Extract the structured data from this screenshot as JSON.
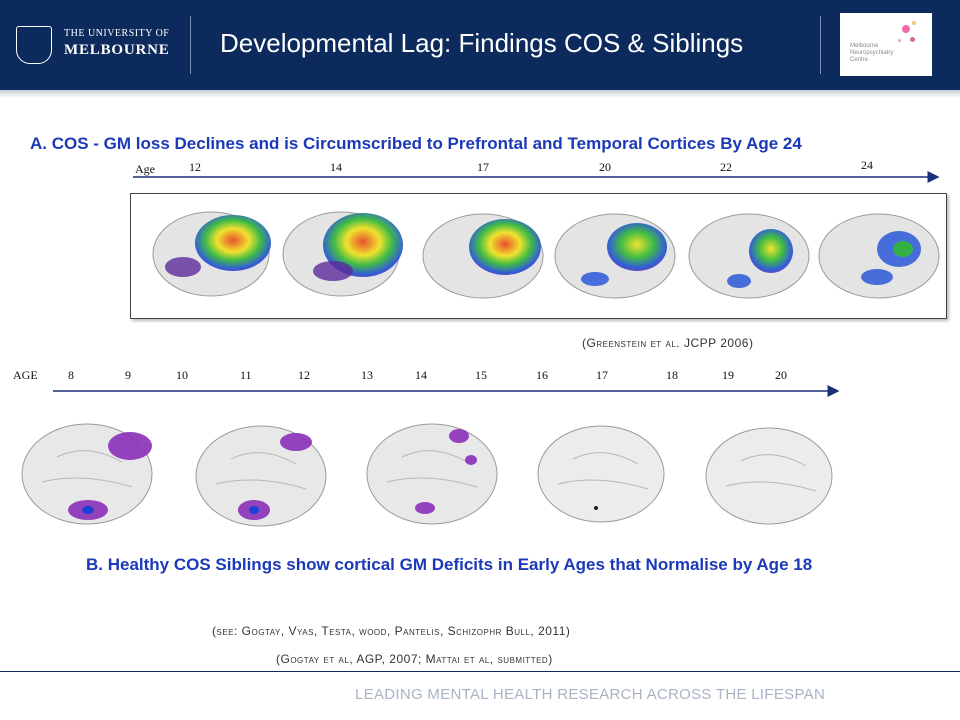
{
  "header": {
    "logo_line1": "THE UNIVERSITY OF",
    "logo_line2": "MELBOURNE",
    "title": "Developmental Lag: Findings COS & Siblings",
    "partner_logo_text": "Melbourne\nNeuropsychiatry\nCentre"
  },
  "sectionA": {
    "heading": "A. COS - GM loss Declines and is Circumscribed to Prefrontal and Temporal Cortices By Age 24",
    "axis_label": "Age",
    "ticks": [
      "12",
      "14",
      "17",
      "20",
      "22",
      "24"
    ],
    "citation": "(Greenstein et al. JCPP 2006)"
  },
  "sectionB": {
    "axis_label": "AGE",
    "ticks": [
      "8",
      "9",
      "10",
      "11",
      "12",
      "13",
      "14",
      "15",
      "16",
      "17",
      "18",
      "19",
      "20"
    ],
    "heading": "B. Healthy COS Siblings show cortical GM Deficits in Early Ages that Normalise by Age 18",
    "citation1": "(see: Gogtay, Vyas, Testa, wood, Pantelis, Schizophr Bull, 2011)",
    "citation2": "(Gogtay et al, AGP, 2007; Mattai et al, submitted)"
  },
  "footer": {
    "tagline": "LEADING MENTAL HEALTH RESEARCH ACROSS THE LIFESPAN"
  },
  "colors": {
    "header_bg": "#0d2a5c",
    "heading_blue": "#1c39b8",
    "footer_text": "#a8b4c4"
  }
}
